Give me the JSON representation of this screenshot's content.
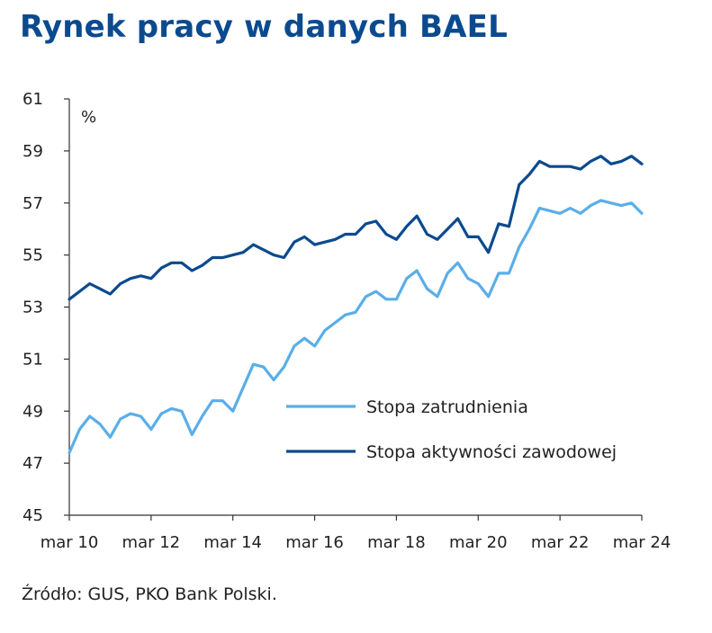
{
  "title": "Rynek pracy w danych BAEL",
  "source": "Źródło: GUS, PKO Bank Polski.",
  "chart_data": {
    "type": "line",
    "title": "Rynek pracy w danych BAEL",
    "unit_label": "%",
    "ylim": [
      45,
      61
    ],
    "yticks": [
      "45",
      "47",
      "49",
      "51",
      "53",
      "55",
      "57",
      "59",
      "61"
    ],
    "xlim": [
      2010,
      2024
    ],
    "xticks": [
      {
        "x": 2010,
        "label": "mar 10"
      },
      {
        "x": 2012,
        "label": "mar 12"
      },
      {
        "x": 2014,
        "label": "mar 14"
      },
      {
        "x": 2016,
        "label": "mar 16"
      },
      {
        "x": 2018,
        "label": "mar 18"
      },
      {
        "x": 2020,
        "label": "mar 20"
      },
      {
        "x": 2022,
        "label": "mar 22"
      },
      {
        "x": 2024,
        "label": "mar 24"
      }
    ],
    "legend_position": "center-right",
    "x_start": 2010,
    "x_step": 0.25,
    "series": [
      {
        "name": "Stopa zatrudnienia",
        "color": "#5aaee8",
        "values": [
          47.4,
          48.3,
          48.8,
          48.5,
          48.0,
          48.7,
          48.9,
          48.8,
          48.3,
          48.9,
          49.1,
          49.0,
          48.1,
          48.8,
          49.4,
          49.4,
          49.0,
          49.9,
          50.8,
          50.7,
          50.2,
          50.7,
          51.5,
          51.8,
          51.5,
          52.1,
          52.4,
          52.7,
          52.8,
          53.4,
          53.6,
          53.3,
          53.3,
          54.1,
          54.4,
          53.7,
          53.4,
          54.3,
          54.7,
          54.1,
          53.9,
          53.4,
          54.3,
          54.3,
          55.3,
          56.0,
          56.8,
          56.7,
          56.6,
          56.8,
          56.6,
          56.9,
          57.1,
          57.0,
          56.9,
          57.0,
          56.6
        ]
      },
      {
        "name": "Stopa aktywności zawodowej",
        "color": "#0b4a8f",
        "values": [
          53.3,
          53.6,
          53.9,
          53.7,
          53.5,
          53.9,
          54.1,
          54.2,
          54.1,
          54.5,
          54.7,
          54.7,
          54.4,
          54.6,
          54.9,
          54.9,
          55.0,
          55.1,
          55.4,
          55.2,
          55.0,
          54.9,
          55.5,
          55.7,
          55.4,
          55.5,
          55.6,
          55.8,
          55.8,
          56.2,
          56.3,
          55.8,
          55.6,
          56.1,
          56.5,
          55.8,
          55.6,
          56.0,
          56.4,
          55.7,
          55.7,
          55.1,
          56.2,
          56.1,
          57.7,
          58.1,
          58.6,
          58.4,
          58.4,
          58.4,
          58.3,
          58.6,
          58.8,
          58.5,
          58.6,
          58.8,
          58.5
        ]
      }
    ]
  }
}
